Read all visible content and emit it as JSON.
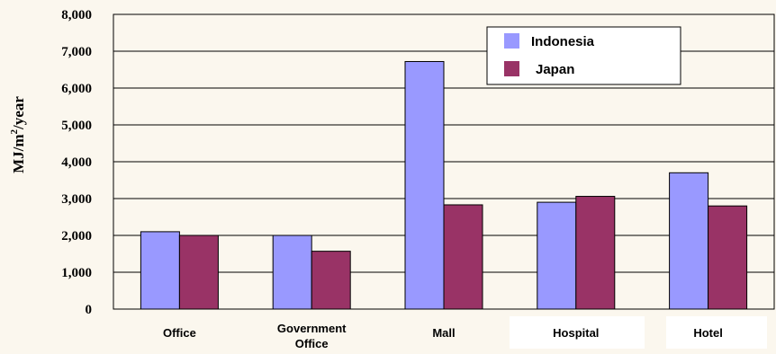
{
  "chart_data": {
    "type": "bar",
    "title": "",
    "xlabel": "",
    "ylabel": "MJ/m",
    "ylabel_sup": "2",
    "ylabel_suffix": "/year",
    "categories": [
      [
        "Office"
      ],
      [
        "Government",
        "Office"
      ],
      [
        "Mall"
      ],
      [
        "Hospital"
      ],
      [
        "Hotel"
      ]
    ],
    "series": [
      {
        "name": "Indonesia",
        "color": "#9999ff",
        "values": [
          2100,
          2000,
          6720,
          2900,
          3700
        ]
      },
      {
        "name": "Japan",
        "color": "#993366",
        "values": [
          2000,
          1570,
          2830,
          3060,
          2800
        ]
      }
    ],
    "ylim": [
      0,
      8000
    ],
    "yticks": [
      {
        "value": 0,
        "label": "0"
      },
      {
        "value": 1000,
        "label": "1,000"
      },
      {
        "value": 2000,
        "label": "2,000"
      },
      {
        "value": 3000,
        "label": "3,000"
      },
      {
        "value": 4000,
        "label": "4,000"
      },
      {
        "value": 5000,
        "label": "5,000"
      },
      {
        "value": 6000,
        "label": "6,000"
      },
      {
        "value": 7000,
        "label": "7,000"
      },
      {
        "value": 8000,
        "label": "8,000"
      }
    ],
    "grid": true,
    "legend_position": "top-right"
  }
}
